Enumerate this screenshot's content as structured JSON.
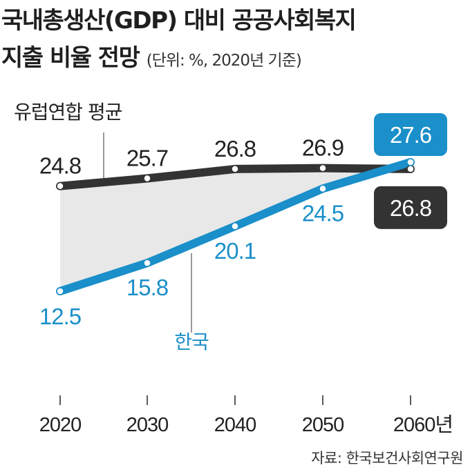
{
  "title": {
    "line1": "국내총생산(GDP) 대비 공공사회복지",
    "line2": "지출 비율 전망",
    "unit": "(단위: %, 2020년 기준)"
  },
  "source": "자료: 한국보건사회연구원",
  "colors": {
    "eu": "#333333",
    "korea": "#1a8fc9",
    "gap_fill": "#e8e8e8",
    "axis": "#222222"
  },
  "chart_data": {
    "type": "line",
    "title": "국내총생산(GDP) 대비 공공사회복지 지출 비율 전망",
    "ylabel": "%",
    "x": [
      "2020",
      "2030",
      "2040",
      "2050",
      "2060"
    ],
    "x_tick_labels": [
      "2020",
      "2030",
      "2040",
      "2050",
      "2060년"
    ],
    "ylim": [
      10,
      29
    ],
    "grid": false,
    "series": [
      {
        "name": "유럽연합 평균",
        "values": [
          24.8,
          25.7,
          26.8,
          26.9,
          26.8
        ],
        "labels": [
          "24.8",
          "25.7",
          "26.8",
          "26.9",
          "26.8"
        ]
      },
      {
        "name": "한국",
        "values": [
          12.5,
          15.8,
          20.1,
          24.5,
          27.6
        ],
        "labels": [
          "12.5",
          "15.8",
          "20.1",
          "24.5",
          "27.6"
        ]
      }
    ]
  }
}
